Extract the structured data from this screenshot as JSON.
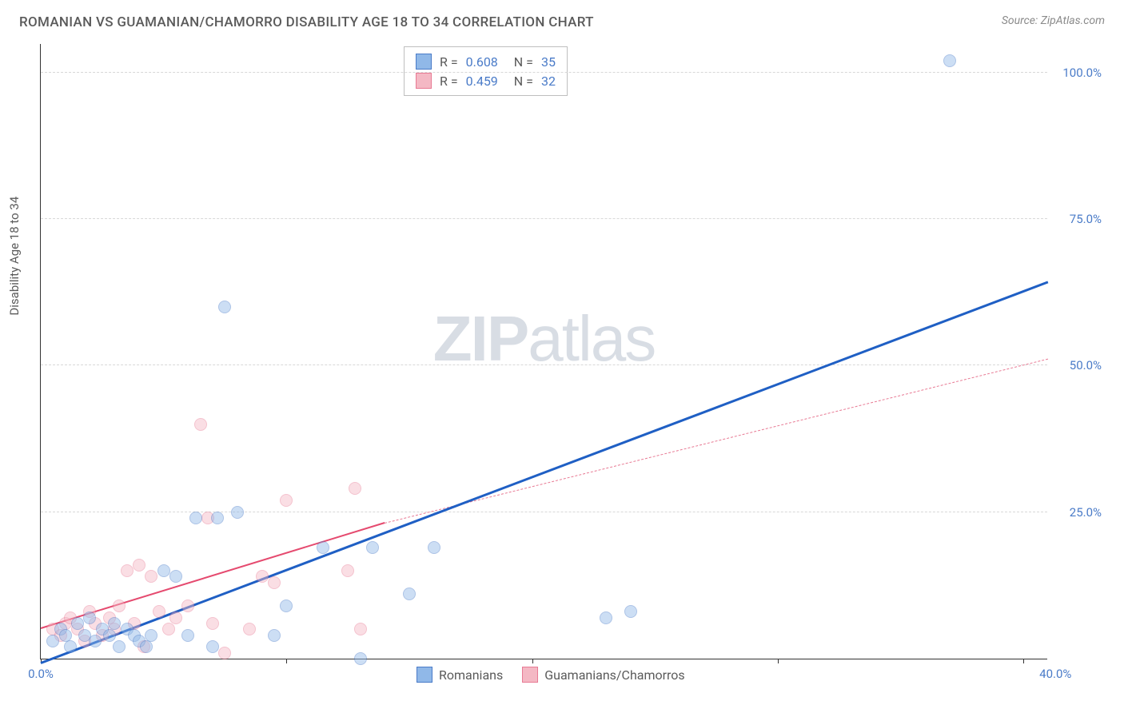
{
  "title": "ROMANIAN VS GUAMANIAN/CHAMORRO DISABILITY AGE 18 TO 34 CORRELATION CHART",
  "source": "Source: ZipAtlas.com",
  "y_axis_label": "Disability Age 18 to 34",
  "watermark_bold": "ZIP",
  "watermark_light": "atlas",
  "chart": {
    "type": "scatter",
    "background_color": "#ffffff",
    "grid_color": "#d8d8d8",
    "axis_color": "#333333",
    "xlim": [
      0,
      41
    ],
    "ylim": [
      0,
      105
    ],
    "x_ticks": [
      0,
      10,
      20,
      30,
      40
    ],
    "x_tick_labels": {
      "0": "0.0%",
      "40": "40.0%"
    },
    "y_ticks": [
      25,
      50,
      75,
      100
    ],
    "y_tick_labels": {
      "25": "25.0%",
      "50": "50.0%",
      "75": "75.0%",
      "100": "100.0%"
    },
    "marker_radius": 8,
    "marker_opacity": 0.45,
    "series": [
      {
        "name": "Romanians",
        "fill_color": "#90b8e8",
        "stroke_color": "#4a7bc8",
        "line_color": "#1f5fc4",
        "line_width": 3,
        "r_value": "0.608",
        "n_value": "35",
        "trend": {
          "x1": 0,
          "y1": -1,
          "x2": 41,
          "y2": 64
        },
        "points": [
          {
            "x": 0.5,
            "y": 3
          },
          {
            "x": 0.8,
            "y": 5
          },
          {
            "x": 1.0,
            "y": 4
          },
          {
            "x": 1.2,
            "y": 2
          },
          {
            "x": 1.5,
            "y": 6
          },
          {
            "x": 1.8,
            "y": 4
          },
          {
            "x": 2.0,
            "y": 7
          },
          {
            "x": 2.2,
            "y": 3
          },
          {
            "x": 2.5,
            "y": 5
          },
          {
            "x": 2.8,
            "y": 4
          },
          {
            "x": 3.0,
            "y": 6
          },
          {
            "x": 3.2,
            "y": 2
          },
          {
            "x": 3.5,
            "y": 5
          },
          {
            "x": 3.8,
            "y": 4
          },
          {
            "x": 4.0,
            "y": 3
          },
          {
            "x": 4.3,
            "y": 2
          },
          {
            "x": 4.5,
            "y": 4
          },
          {
            "x": 5.0,
            "y": 15
          },
          {
            "x": 5.5,
            "y": 14
          },
          {
            "x": 6.0,
            "y": 4
          },
          {
            "x": 6.3,
            "y": 24
          },
          {
            "x": 7.0,
            "y": 2
          },
          {
            "x": 7.2,
            "y": 24
          },
          {
            "x": 7.5,
            "y": 60
          },
          {
            "x": 8.0,
            "y": 25
          },
          {
            "x": 9.5,
            "y": 4
          },
          {
            "x": 10.0,
            "y": 9
          },
          {
            "x": 11.5,
            "y": 19
          },
          {
            "x": 13.0,
            "y": 0
          },
          {
            "x": 13.5,
            "y": 19
          },
          {
            "x": 15.0,
            "y": 11
          },
          {
            "x": 16.0,
            "y": 19
          },
          {
            "x": 23.0,
            "y": 7
          },
          {
            "x": 24.0,
            "y": 8
          },
          {
            "x": 37.0,
            "y": 102
          }
        ]
      },
      {
        "name": "Guamanians/Chamorros",
        "fill_color": "#f4b8c4",
        "stroke_color": "#e87a94",
        "line_color": "#e54a6f",
        "line_width": 2.5,
        "r_value": "0.459",
        "n_value": "32",
        "trend_solid": {
          "x1": 0,
          "y1": 5,
          "x2": 14,
          "y2": 23
        },
        "trend_dashed": {
          "x1": 14,
          "y1": 23,
          "x2": 41,
          "y2": 51
        },
        "points": [
          {
            "x": 0.5,
            "y": 5
          },
          {
            "x": 0.8,
            "y": 4
          },
          {
            "x": 1.0,
            "y": 6
          },
          {
            "x": 1.2,
            "y": 7
          },
          {
            "x": 1.5,
            "y": 5
          },
          {
            "x": 1.8,
            "y": 3
          },
          {
            "x": 2.0,
            "y": 8
          },
          {
            "x": 2.2,
            "y": 6
          },
          {
            "x": 2.5,
            "y": 4
          },
          {
            "x": 2.8,
            "y": 7
          },
          {
            "x": 3.0,
            "y": 5
          },
          {
            "x": 3.2,
            "y": 9
          },
          {
            "x": 3.5,
            "y": 15
          },
          {
            "x": 3.8,
            "y": 6
          },
          {
            "x": 4.0,
            "y": 16
          },
          {
            "x": 4.2,
            "y": 2
          },
          {
            "x": 4.5,
            "y": 14
          },
          {
            "x": 4.8,
            "y": 8
          },
          {
            "x": 5.2,
            "y": 5
          },
          {
            "x": 5.5,
            "y": 7
          },
          {
            "x": 6.0,
            "y": 9
          },
          {
            "x": 6.5,
            "y": 40
          },
          {
            "x": 6.8,
            "y": 24
          },
          {
            "x": 7.0,
            "y": 6
          },
          {
            "x": 7.5,
            "y": 1
          },
          {
            "x": 8.5,
            "y": 5
          },
          {
            "x": 9.0,
            "y": 14
          },
          {
            "x": 9.5,
            "y": 13
          },
          {
            "x": 10.0,
            "y": 27
          },
          {
            "x": 12.5,
            "y": 15
          },
          {
            "x": 12.8,
            "y": 29
          },
          {
            "x": 13.0,
            "y": 5
          }
        ]
      }
    ]
  },
  "legend_top": [
    {
      "series": 0,
      "r_label": "R =",
      "n_label": "N ="
    },
    {
      "series": 1,
      "r_label": "R =",
      "n_label": "N ="
    }
  ],
  "legend_bottom": [
    {
      "series": 0
    },
    {
      "series": 1
    }
  ]
}
